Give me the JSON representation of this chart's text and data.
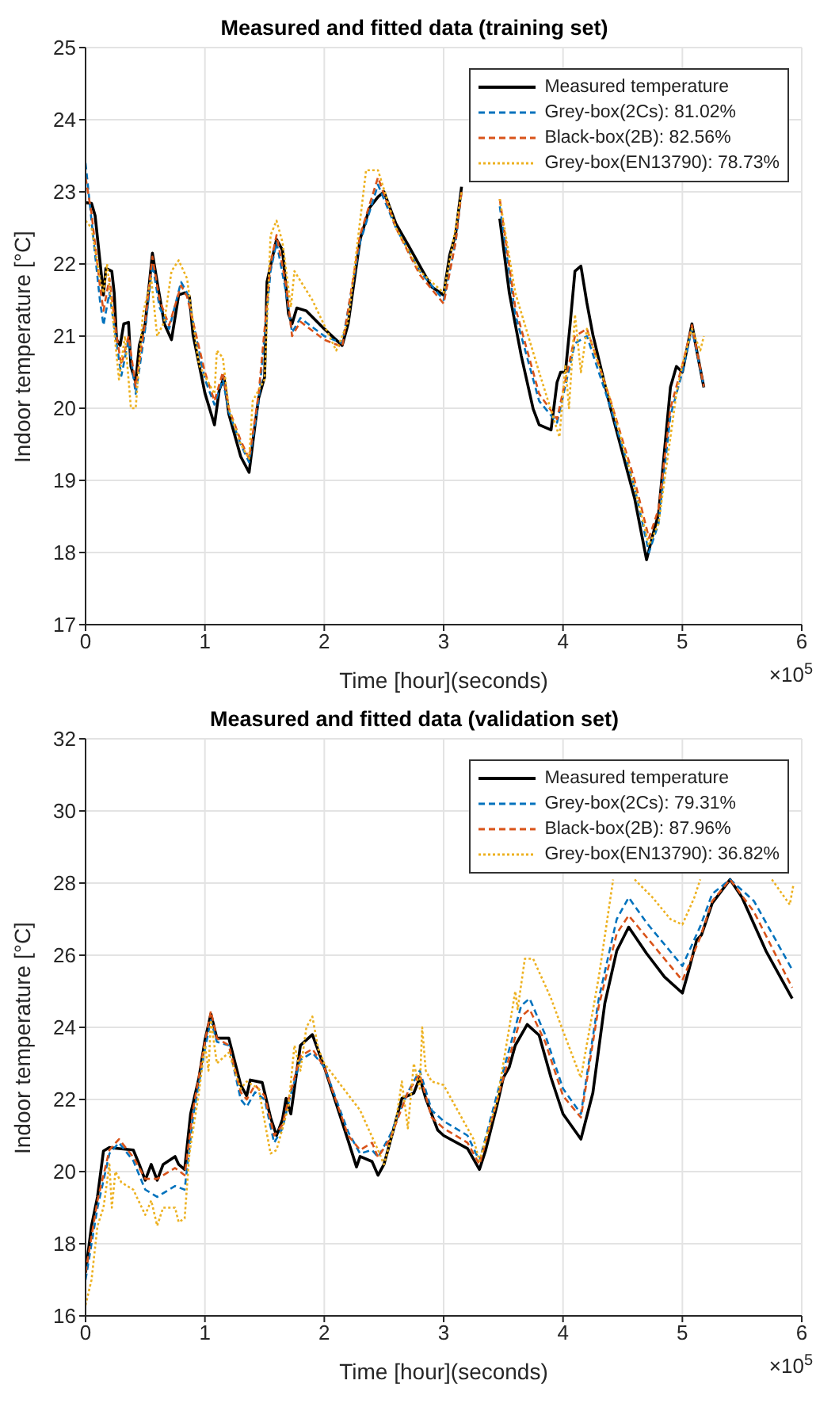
{
  "chart_data": [
    {
      "type": "line",
      "title": "Measured and fitted data (training set)",
      "xlabel": "Time [hour](seconds)",
      "ylabel": "Indoor temperature [°C]",
      "annotations": [
        "×10$^{5}$"
      ],
      "xlim": [
        0,
        6
      ],
      "xticks": [
        0,
        1,
        2,
        3,
        4,
        5,
        6
      ],
      "ylim": [
        17,
        25
      ],
      "yticks": [
        17,
        18,
        19,
        20,
        21,
        22,
        23,
        24,
        25
      ],
      "grid": true,
      "legend": "top right",
      "series": [
        {
          "name": "Measured temperature",
          "color": "#000000",
          "line_style": "solid",
          "x": [
            0,
            0.05,
            0.08,
            0.12,
            0.15,
            0.17,
            0.22,
            0.24,
            0.26,
            0.29,
            0.32,
            0.36,
            0.38,
            0.42,
            0.45,
            0.5,
            0.56,
            0.6,
            0.66,
            0.72,
            0.78,
            0.83,
            0.87,
            0.9,
            1.0,
            1.08,
            1.12,
            1.16,
            1.2,
            1.3,
            1.37,
            1.42,
            1.45,
            1.5,
            1.52,
            1.56,
            1.6,
            1.65,
            1.7,
            1.73,
            1.77,
            1.85,
            2.0,
            2.15,
            2.2,
            2.3,
            2.38,
            2.45,
            2.5,
            2.6,
            2.7,
            2.9,
            3.0,
            3.05,
            3.1,
            3.15,
            3.2,
            3.45,
            3.47,
            3.55,
            3.65,
            3.75,
            3.8,
            3.9,
            3.95,
            3.98,
            4.02,
            4.06,
            4.1,
            4.15,
            4.2,
            4.25,
            4.4,
            4.6,
            4.7,
            4.75,
            4.8,
            4.9,
            4.95,
            5.0,
            5.08,
            5.12,
            5.18
          ],
          "values": [
            22.85,
            22.84,
            22.67,
            22.05,
            21.57,
            21.94,
            21.9,
            21.6,
            20.95,
            20.87,
            21.17,
            21.19,
            20.58,
            20.36,
            20.87,
            21.17,
            22.15,
            21.75,
            21.17,
            20.95,
            21.57,
            21.6,
            21.55,
            21.02,
            20.21,
            19.77,
            20.25,
            20.43,
            19.92,
            19.33,
            19.11,
            19.77,
            20.14,
            20.43,
            21.75,
            22.05,
            22.34,
            22.19,
            21.31,
            21.17,
            21.39,
            21.35,
            21.1,
            20.87,
            21.17,
            22.34,
            22.78,
            22.93,
            23.0,
            22.56,
            22.27,
            21.68,
            21.57,
            22.12,
            22.41,
            23.07,
            null,
            null,
            22.63,
            21.6,
            20.73,
            19.99,
            19.77,
            19.7,
            20.36,
            20.5,
            20.5,
            21.17,
            21.9,
            21.97,
            21.46,
            21.02,
            19.99,
            18.75,
            17.9,
            18.23,
            18.53,
            20.29,
            20.58,
            20.5,
            21.17,
            20.8,
            20.29
          ]
        },
        {
          "name": "Grey-box(2Cs): 81.02%",
          "color": "#0072bd",
          "line_style": "dashed",
          "x": [
            0,
            0.05,
            0.12,
            0.15,
            0.2,
            0.26,
            0.3,
            0.36,
            0.42,
            0.5,
            0.56,
            0.62,
            0.7,
            0.8,
            0.85,
            1.0,
            1.08,
            1.15,
            1.2,
            1.3,
            1.37,
            1.45,
            1.55,
            1.6,
            1.68,
            1.73,
            1.8,
            2.0,
            2.15,
            2.3,
            2.45,
            2.6,
            2.8,
            3.0,
            3.1,
            3.15,
            3.2,
            3.45,
            3.47,
            3.6,
            3.8,
            3.95,
            4.1,
            4.2,
            4.4,
            4.6,
            4.72,
            4.8,
            4.9,
            5.0,
            5.08,
            5.18
          ],
          "values": [
            23.4,
            22.6,
            21.5,
            21.15,
            21.6,
            20.9,
            20.45,
            20.95,
            20.2,
            21.1,
            22.0,
            21.4,
            21.1,
            21.75,
            21.6,
            20.4,
            20.05,
            20.4,
            19.95,
            19.5,
            19.25,
            20.1,
            21.9,
            22.3,
            21.6,
            21.05,
            21.25,
            21.0,
            20.9,
            22.3,
            23.1,
            22.5,
            21.9,
            21.5,
            22.3,
            23.0,
            null,
            null,
            22.8,
            21.3,
            20.1,
            19.8,
            20.9,
            21.0,
            20.0,
            18.9,
            18.0,
            18.4,
            19.9,
            20.5,
            21.1,
            20.3
          ]
        },
        {
          "name": "Black-box(2B): 82.56%",
          "color": "#d95319",
          "line_style": "dashed",
          "x": [
            0,
            0.05,
            0.12,
            0.15,
            0.2,
            0.26,
            0.3,
            0.36,
            0.42,
            0.5,
            0.56,
            0.62,
            0.7,
            0.8,
            0.85,
            1.0,
            1.08,
            1.15,
            1.2,
            1.3,
            1.37,
            1.45,
            1.55,
            1.6,
            1.68,
            1.73,
            1.8,
            2.0,
            2.15,
            2.3,
            2.45,
            2.6,
            2.8,
            3.0,
            3.1,
            3.15,
            3.2,
            3.45,
            3.47,
            3.6,
            3.8,
            3.95,
            4.1,
            4.2,
            4.4,
            4.6,
            4.72,
            4.8,
            4.9,
            5.0,
            5.08,
            5.18
          ],
          "values": [
            23.2,
            22.7,
            21.7,
            21.35,
            21.8,
            21.0,
            20.6,
            21.0,
            20.3,
            21.2,
            22.1,
            21.5,
            21.15,
            21.7,
            21.55,
            20.5,
            20.1,
            20.5,
            20.0,
            19.55,
            19.3,
            20.2,
            22.0,
            22.4,
            21.7,
            21.0,
            21.2,
            20.95,
            20.85,
            22.4,
            23.2,
            22.5,
            21.85,
            21.45,
            22.3,
            23.0,
            null,
            null,
            22.9,
            21.4,
            20.2,
            19.85,
            21.0,
            21.1,
            20.1,
            19.0,
            18.2,
            18.6,
            20.0,
            20.6,
            21.15,
            20.3
          ]
        },
        {
          "name": "Grey-box(EN13790): 78.73%",
          "color": "#edb120",
          "line_style": "dotted",
          "x": [
            0,
            0.05,
            0.12,
            0.15,
            0.18,
            0.22,
            0.28,
            0.33,
            0.38,
            0.42,
            0.48,
            0.55,
            0.6,
            0.66,
            0.72,
            0.78,
            0.85,
            0.95,
            1.08,
            1.1,
            1.15,
            1.2,
            1.3,
            1.37,
            1.4,
            1.5,
            1.55,
            1.6,
            1.65,
            1.72,
            1.75,
            1.9,
            2.1,
            2.2,
            2.35,
            2.45,
            2.6,
            2.8,
            3.0,
            3.1,
            3.15,
            3.2,
            3.45,
            3.47,
            3.6,
            3.8,
            3.97,
            4.02,
            4.05,
            4.1,
            4.15,
            4.2,
            4.4,
            4.6,
            4.72,
            4.8,
            4.9,
            4.95,
            5.0,
            5.08,
            5.15,
            5.18
          ],
          "values": [
            22.6,
            22.5,
            21.8,
            21.6,
            22.0,
            21.4,
            20.4,
            21.0,
            20.0,
            20.0,
            21.3,
            21.8,
            21.0,
            21.2,
            21.9,
            22.05,
            21.8,
            20.6,
            20.2,
            20.8,
            20.7,
            20.0,
            19.5,
            19.3,
            20.1,
            20.4,
            22.4,
            22.6,
            22.3,
            21.4,
            21.9,
            21.5,
            20.8,
            21.2,
            23.3,
            23.3,
            22.5,
            21.9,
            21.6,
            22.5,
            23.0,
            null,
            null,
            22.9,
            21.6,
            20.5,
            19.6,
            20.6,
            20.0,
            21.3,
            20.5,
            21.1,
            20.1,
            18.9,
            18.1,
            18.4,
            19.6,
            20.2,
            20.6,
            21.1,
            20.8,
            21.0
          ]
        }
      ]
    },
    {
      "type": "line",
      "title": "Measured and fitted data (validation set)",
      "xlabel": "Time [hour](seconds)",
      "ylabel": "Indoor temperature [°C]",
      "annotations": [
        "×10$^{5}$"
      ],
      "xlim": [
        0,
        6
      ],
      "xticks": [
        0,
        1,
        2,
        3,
        4,
        5,
        6
      ],
      "ylim": [
        16,
        32
      ],
      "yticks": [
        16,
        18,
        20,
        22,
        24,
        26,
        28,
        30,
        32
      ],
      "grid": true,
      "legend": "top right",
      "series": [
        {
          "name": "Measured temperature",
          "color": "#000000",
          "line_style": "solid",
          "x": [
            0,
            0.05,
            0.1,
            0.15,
            0.2,
            0.25,
            0.4,
            0.45,
            0.5,
            0.55,
            0.6,
            0.65,
            0.75,
            0.78,
            0.83,
            0.88,
            0.95,
            1.0,
            1.05,
            1.1,
            1.2,
            1.3,
            1.35,
            1.38,
            1.48,
            1.55,
            1.6,
            1.65,
            1.68,
            1.72,
            1.8,
            1.9,
            2.0,
            2.2,
            2.27,
            2.3,
            2.4,
            2.45,
            2.5,
            2.55,
            2.65,
            2.7,
            2.75,
            2.8,
            2.85,
            2.95,
            3.0,
            3.2,
            3.3,
            3.35,
            3.45,
            3.5,
            3.55,
            3.6,
            3.7,
            3.8,
            3.9,
            4.0,
            4.15,
            4.25,
            4.35,
            4.45,
            4.55,
            4.7,
            4.85,
            5.0,
            5.05,
            5.12,
            5.16,
            5.25,
            5.4,
            5.5,
            5.7,
            5.92
          ],
          "values": [
            17.2,
            18.5,
            19.3,
            20.57,
            20.67,
            20.65,
            20.6,
            20.2,
            19.76,
            20.2,
            19.76,
            20.2,
            20.42,
            20.2,
            20.06,
            21.6,
            22.6,
            23.64,
            24.37,
            23.7,
            23.7,
            22.4,
            22.1,
            22.54,
            22.47,
            21.5,
            21.0,
            21.45,
            22.03,
            21.6,
            23.5,
            23.8,
            22.9,
            20.86,
            20.13,
            20.42,
            20.28,
            19.9,
            20.2,
            20.8,
            22.03,
            22.1,
            22.18,
            22.6,
            22.03,
            21.15,
            21.0,
            20.64,
            20.06,
            20.57,
            21.88,
            22.6,
            22.9,
            23.5,
            24.08,
            23.78,
            22.6,
            21.6,
            20.9,
            22.18,
            24.66,
            26.12,
            26.78,
            26.05,
            25.4,
            24.95,
            25.54,
            26.42,
            26.56,
            27.44,
            28.1,
            27.6,
            26.12,
            24.8
          ]
        },
        {
          "name": "Grey-box(2Cs): 79.31%",
          "color": "#0072bd",
          "line_style": "dashed",
          "x": [
            0,
            0.1,
            0.2,
            0.28,
            0.4,
            0.5,
            0.6,
            0.75,
            0.83,
            0.9,
            1.0,
            1.05,
            1.1,
            1.2,
            1.3,
            1.35,
            1.42,
            1.5,
            1.58,
            1.65,
            1.7,
            1.8,
            1.9,
            2.0,
            2.2,
            2.3,
            2.4,
            2.45,
            2.55,
            2.7,
            2.8,
            2.9,
            3.0,
            3.2,
            3.3,
            3.5,
            3.65,
            3.72,
            3.85,
            4.0,
            4.15,
            4.3,
            4.45,
            4.55,
            4.7,
            5.0,
            5.15,
            5.25,
            5.4,
            5.6,
            5.92
          ],
          "values": [
            17.0,
            19.0,
            20.5,
            20.8,
            20.3,
            19.5,
            19.3,
            19.6,
            19.5,
            21.5,
            23.4,
            24.2,
            23.6,
            23.5,
            22.0,
            21.8,
            22.2,
            22.0,
            20.8,
            21.2,
            21.9,
            23.1,
            23.3,
            22.9,
            21.1,
            20.5,
            20.6,
            20.4,
            21.0,
            22.2,
            22.8,
            21.7,
            21.4,
            21.0,
            20.3,
            22.8,
            24.6,
            24.8,
            23.8,
            22.3,
            21.6,
            24.8,
            27.0,
            27.6,
            26.9,
            25.7,
            26.8,
            27.7,
            28.1,
            27.5,
            25.6
          ]
        },
        {
          "name": "Black-box(2B): 87.96%",
          "color": "#d95319",
          "line_style": "dashed",
          "x": [
            0,
            0.1,
            0.2,
            0.28,
            0.4,
            0.5,
            0.6,
            0.75,
            0.83,
            0.9,
            1.0,
            1.05,
            1.1,
            1.2,
            1.3,
            1.35,
            1.42,
            1.5,
            1.58,
            1.65,
            1.7,
            1.8,
            1.9,
            2.0,
            2.2,
            2.3,
            2.4,
            2.45,
            2.55,
            2.7,
            2.8,
            2.9,
            3.0,
            3.2,
            3.3,
            3.5,
            3.65,
            3.72,
            3.85,
            4.0,
            4.15,
            4.3,
            4.45,
            4.55,
            4.7,
            5.0,
            5.15,
            5.25,
            5.4,
            5.6,
            5.92
          ],
          "values": [
            17.2,
            19.2,
            20.6,
            20.9,
            20.4,
            19.8,
            19.8,
            20.1,
            19.9,
            21.7,
            23.6,
            24.45,
            23.7,
            23.5,
            22.2,
            22.0,
            22.4,
            22.1,
            21.0,
            21.3,
            22.0,
            23.2,
            23.4,
            22.9,
            21.0,
            20.6,
            20.8,
            20.4,
            20.9,
            22.2,
            22.7,
            21.5,
            21.2,
            20.8,
            20.2,
            22.6,
            24.3,
            24.5,
            23.6,
            22.1,
            21.5,
            24.6,
            26.6,
            27.1,
            26.5,
            25.3,
            26.5,
            27.5,
            28.1,
            27.2,
            25.1
          ]
        },
        {
          "name": "Grey-box(EN13790): 36.82%",
          "color": "#edb120",
          "line_style": "dotted",
          "x": [
            0,
            0.05,
            0.1,
            0.15,
            0.2,
            0.22,
            0.25,
            0.3,
            0.4,
            0.5,
            0.55,
            0.6,
            0.65,
            0.75,
            0.78,
            0.83,
            0.87,
            0.95,
            1.0,
            1.03,
            1.05,
            1.1,
            1.2,
            1.3,
            1.35,
            1.45,
            1.55,
            1.6,
            1.7,
            1.75,
            1.8,
            1.85,
            1.9,
            1.95,
            2.0,
            2.3,
            2.45,
            2.5,
            2.6,
            2.65,
            2.7,
            2.75,
            2.8,
            2.82,
            2.85,
            2.9,
            3.0,
            3.25,
            3.3,
            3.45,
            3.55,
            3.6,
            3.62,
            3.68,
            3.75,
            3.9,
            4.0,
            4.15,
            4.3,
            4.42,
            4.45,
            4.6,
            4.75,
            4.9,
            5.0,
            5.1,
            5.15,
            5.2,
            5.7,
            5.75,
            5.9,
            5.93
          ],
          "values": [
            16.3,
            17.0,
            18.5,
            19.0,
            20.2,
            19.0,
            20.0,
            19.7,
            19.5,
            18.8,
            19.2,
            18.5,
            19.0,
            19.0,
            18.6,
            18.7,
            20.5,
            22.2,
            23.5,
            22.8,
            24.2,
            23.0,
            23.3,
            22.3,
            22.5,
            22.3,
            20.5,
            20.6,
            21.8,
            23.5,
            22.8,
            24.0,
            24.3,
            23.4,
            23.0,
            21.7,
            20.6,
            20.2,
            21.4,
            22.5,
            21.2,
            23.0,
            22.3,
            24.0,
            22.8,
            22.5,
            22.4,
            20.9,
            20.3,
            22.0,
            24.0,
            25.0,
            24.5,
            25.9,
            25.9,
            24.8,
            23.9,
            22.6,
            25.4,
            28.1,
            null,
            28.1,
            27.6,
            27.0,
            26.85,
            27.6,
            28.1,
            null,
            null,
            28.1,
            27.4,
            27.95
          ]
        }
      ]
    }
  ]
}
